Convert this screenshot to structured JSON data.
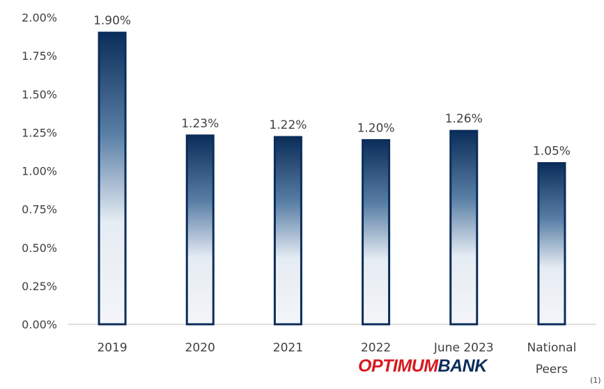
{
  "chart_data": {
    "type": "bar",
    "categories": [
      "2019",
      "2020",
      "2021",
      "2022",
      "June 2023",
      "National Peers"
    ],
    "category_lines": [
      [
        "2019"
      ],
      [
        "2020"
      ],
      [
        "2021"
      ],
      [
        "2022"
      ],
      [
        "June 2023"
      ],
      [
        "National",
        "Peers"
      ]
    ],
    "values": [
      1.9,
      1.23,
      1.22,
      1.2,
      1.26,
      1.05
    ],
    "value_labels": [
      "1.90%",
      "1.23%",
      "1.22%",
      "1.20%",
      "1.26%",
      "1.05%"
    ],
    "ylim": [
      0,
      2.0
    ],
    "yticks": [
      "0.00%",
      "0.25%",
      "0.50%",
      "0.75%",
      "1.00%",
      "1.25%",
      "1.50%",
      "1.75%",
      "2.00%"
    ],
    "title": "",
    "xlabel": "",
    "ylabel": "",
    "grid": false,
    "bar_gradient": [
      "#0b2d5a",
      "#f0f3f7"
    ]
  },
  "brand": {
    "part1": "OPTIMUM",
    "part2": "BANK"
  },
  "footnote": "(1)",
  "colors": {
    "brand_red": "#d71920",
    "brand_navy": "#0b2d5a"
  }
}
